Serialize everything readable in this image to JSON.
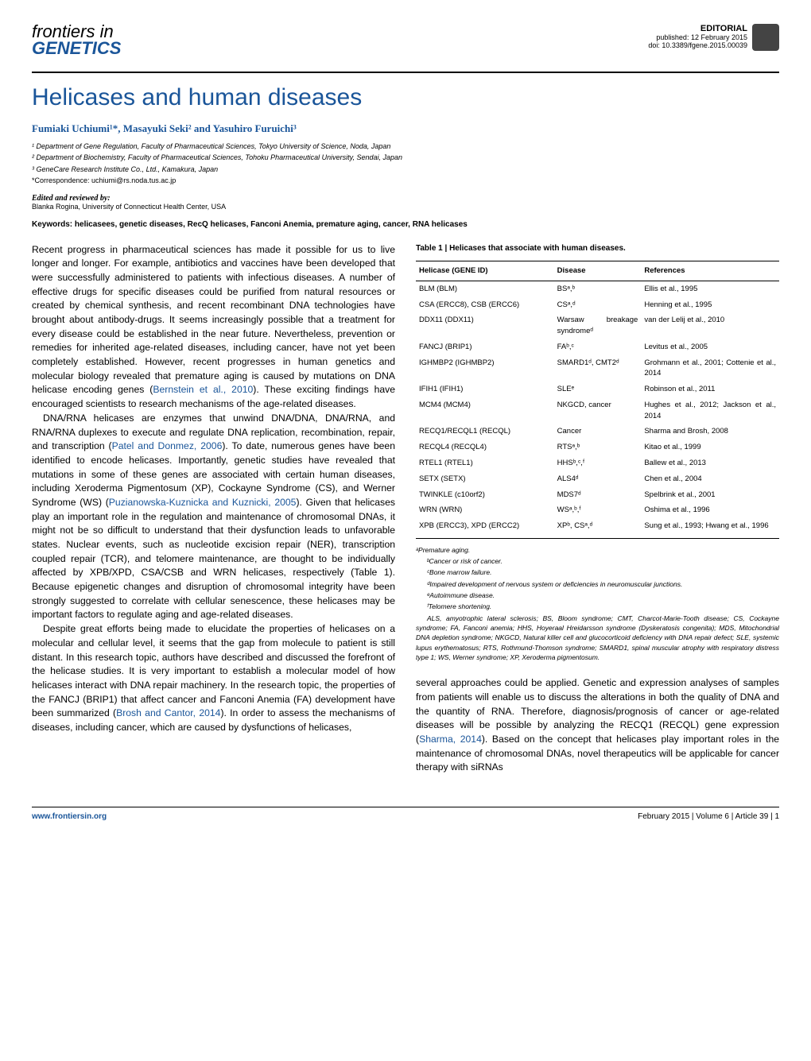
{
  "header": {
    "journal_line1": "frontiers in",
    "journal_line2": "GENETICS",
    "editorial": "EDITORIAL",
    "published": "published: 12 February 2015",
    "doi": "doi: 10.3389/fgene.2015.00039"
  },
  "article": {
    "title": "Helicases and human diseases",
    "authors": "Fumiaki Uchiumi¹*, Masayuki Seki² and Yasuhiro Furuichi³",
    "affiliations": [
      "¹ Department of Gene Regulation, Faculty of Pharmaceutical Sciences, Tokyo University of Science, Noda, Japan",
      "² Department of Biochemistry, Faculty of Pharmaceutical Sciences, Tohoku Pharmaceutical University, Sendai, Japan",
      "³ GeneCare Research Institute Co., Ltd., Kamakura, Japan"
    ],
    "correspondence": "*Correspondence: uchiumi@rs.noda.tus.ac.jp",
    "edited_label": "Edited and reviewed by:",
    "edited_by": "Blanka Rogina, University of Connecticut Health Center, USA",
    "keywords": "Keywords: helicasees, genetic diseases, RecQ helicases, Fanconi Anemia, premature aging, cancer, RNA helicases"
  },
  "body": {
    "left": {
      "p1": "Recent progress in pharmaceutical sciences has made it possible for us to live longer and longer. For example, antibiotics and vaccines have been developed that were successfully administered to patients with infectious diseases. A number of effective drugs for specific diseases could be purified from natural resources or created by chemical synthesis, and recent recombinant DNA technologies have brought about antibody-drugs. It seems increasingly possible that a treatment for every disease could be established in the near future. Nevertheless, prevention or remedies for inherited age-related diseases, including cancer, have not yet been completely established. However, recent progresses in human genetics and molecular biology revealed that premature aging is caused by mutations on DNA helicase encoding genes (",
      "p1c": "Bernstein et al., 2010",
      "p1b": "). These exciting findings have encouraged scientists to research mechanisms of the age-related diseases.",
      "p2": "DNA/RNA helicases are enzymes that unwind DNA/DNA, DNA/RNA, and RNA/RNA duplexes to execute and regulate DNA replication, recombination, repair, and transcription (",
      "p2c": "Patel and Donmez, 2006",
      "p2b": "). To date, numerous genes have been identified to encode helicases. Importantly, genetic studies have revealed that mutations in some of these genes are associated with certain human diseases, including Xeroderma Pigmentosum (XP), Cockayne Syndrome (CS), and Werner Syndrome (WS) (",
      "p2c2": "Puzianowska-Kuznicka and Kuznicki, 2005",
      "p2b2": "). Given that helicases play an important role in the regulation and maintenance of chromosomal DNAs, it might not be so difficult to understand that their dysfunction leads to unfavorable states. Nuclear events, such as nucleotide excision repair (NER), transcription coupled repair (TCR), and telomere maintenance, are thought to be individually affected by XPB/XPD, CSA/CSB and WRN helicases, respectively (Table 1). Because epigenetic changes and disruption of chromosomal integrity have been strongly suggested to correlate with cellular senescence, these helicases may be important factors to regulate aging and age-related diseases.",
      "p3": "Despite great efforts being made to elucidate the properties of helicases on a molecular and cellular level, it seems that the gap from molecule to patient is still distant. In this research topic, authors have described and discussed the forefront of the helicase studies. It is very important to establish a molecular model of how helicases interact with DNA repair machinery. In the research topic, the properties of the FANCJ (BRIP1) that affect cancer and Fanconi Anemia (FA) development have been summarized (",
      "p3c": "Brosh and Cantor, 2014",
      "p3b": "). In order to assess the mechanisms of diseases, including cancer, which are caused by dysfunctions of helicases,"
    },
    "right": {
      "p1": "several approaches could be applied. Genetic and expression analyses of samples from patients will enable us to discuss the alterations in both the quality of DNA and the quantity of RNA. Therefore, diagnosis/prognosis of cancer or age-related diseases will be possible by analyzing the RECQ1 (RECQL) gene expression (",
      "p1c": "Sharma, 2014",
      "p1b": "). Based on the concept that helicases play important roles in the maintenance of chromosomal DNAs, novel therapeutics will be applicable for cancer therapy with siRNAs"
    }
  },
  "table": {
    "caption": "Table 1 | Helicases that associate with human diseases.",
    "headers": [
      "Helicase (GENE ID)",
      "Disease",
      "References"
    ],
    "col_widths": [
      "38%",
      "24%",
      "38%"
    ],
    "rows": [
      [
        "BLM (BLM)",
        "BSᵃ,ᵇ",
        "Ellis et al., 1995"
      ],
      [
        "CSA (ERCC8), CSB (ERCC6)",
        "CSᵃ,ᵈ",
        "Henning et al., 1995"
      ],
      [
        "DDX11 (DDX11)",
        "Warsaw breakage syndromeᵈ",
        "van der Lelij et al., 2010"
      ],
      [
        "FANCJ (BRIP1)",
        "FAᵇ,ᶜ",
        "Levitus et al., 2005"
      ],
      [
        "IGHMBP2 (IGHMBP2)",
        "SMARD1ᵈ, CMT2ᵈ",
        "Grohmann et al., 2001; Cottenie et al., 2014"
      ],
      [
        "IFIH1 (IFIH1)",
        "SLEᵉ",
        "Robinson et al., 2011"
      ],
      [
        "MCM4 (MCM4)",
        "NKGCD, cancer",
        "Hughes et al., 2012; Jackson et al., 2014"
      ],
      [
        "RECQ1/RECQL1 (RECQL)",
        "Cancer",
        "Sharma and Brosh, 2008"
      ],
      [
        "RECQL4 (RECQL4)",
        "RTSᵃ,ᵇ",
        "Kitao et al., 1999"
      ],
      [
        "RTEL1 (RTEL1)",
        "HHSᵇ,ᶜ,ᶠ",
        "Ballew et al., 2013"
      ],
      [
        "SETX (SETX)",
        "ALS4ᵈ",
        "Chen et al., 2004"
      ],
      [
        "TWINKLE (c10orf2)",
        "MDS7ᵈ",
        "Spelbrink et al., 2001"
      ],
      [
        "WRN (WRN)",
        "WSᵃ,ᵇ,ᶠ",
        "Oshima et al., 1996"
      ],
      [
        "XPB (ERCC3), XPD (ERCC2)",
        "XPᵇ, CSᵃ,ᵈ",
        "Sung et al., 1993; Hwang et al., 1996"
      ]
    ],
    "footnotes": [
      "ᵃPremature aging.",
      "ᵇCancer or risk of cancer.",
      "ᶜBone marrow failure.",
      "ᵈImpaired development of nervous system or deficiencies in neuromuscular junctions.",
      "ᵉAutoimmune disease.",
      "ᶠTelomere shortening.",
      "ALS, amyotrophic lateral sclerosis; BS, Bloom syndrome; CMT, Charcot-Marie-Tooth disease; CS, Cockayne syndrome; FA, Fanconi anemia; HHS, Hoyeraal Hreidarsson syndrome (Dyskeratosis congenita); MDS, Mitochondrial DNA depletion syndrome; NKGCD, Natural killer cell and glucocorticoid deficiency with DNA repair defect; SLE, systemic lupus erythematosus; RTS, Rothmund-Thomson syndrome; SMARD1, spinal muscular atrophy with respiratory distress type 1; WS, Werner syndrome; XP, Xeroderma pigmentosum."
    ]
  },
  "footer": {
    "left": "www.frontiersin.org",
    "right": "February 2015 | Volume 6 | Article 39 | 1"
  }
}
